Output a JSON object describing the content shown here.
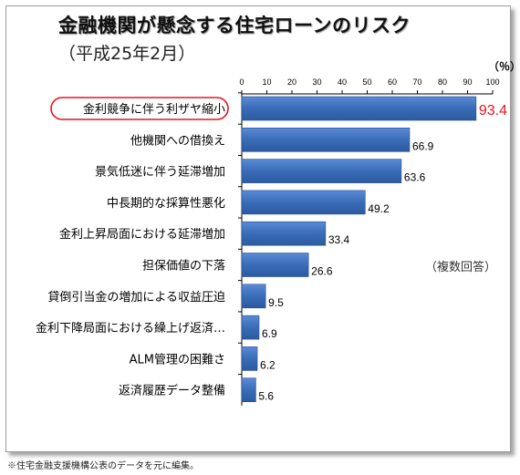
{
  "title": "金融機関が懸念する住宅ローンのリスク",
  "subtitle": "（平成25年2月）",
  "unit_label": "（％）",
  "note": "（複数回答）",
  "source": "※住宅金融支援機構公表のデータを元に編集。",
  "colors": {
    "bar": "#3a6cb8",
    "bar_edge": "#24508f",
    "highlight": "#e8131b",
    "axis": "#000000"
  },
  "chart_data": {
    "type": "bar",
    "orientation": "horizontal",
    "title": "金融機関が懸念する住宅ローンのリスク",
    "subtitle": "（平成25年2月）",
    "unit": "（％）",
    "xlim": [
      0,
      100
    ],
    "x_ticks": [
      0,
      10,
      20,
      30,
      40,
      50,
      60,
      70,
      80,
      90,
      100
    ],
    "grid": false,
    "categories": [
      "金利競争に伴う利ザヤ縮小",
      "他機関への借換え",
      "景気低迷に伴う延滞増加",
      "中長期的な採算性悪化",
      "金利上昇局面における延滞増加",
      "担保価値の下落",
      "貸倒引当金の増加による収益圧迫",
      "金利下降局面における繰上げ返済…",
      "ALM管理の困難さ",
      "返済履歴データ整備"
    ],
    "values": [
      93.4,
      66.9,
      63.6,
      49.2,
      33.4,
      26.6,
      9.5,
      6.9,
      6.2,
      5.6
    ],
    "value_labels": [
      "93.4",
      "66.9",
      "63.6",
      "49.2",
      "33.4",
      "26.6",
      "9.5",
      "6.9",
      "6.2",
      "5.6"
    ],
    "highlighted_index": 0
  }
}
